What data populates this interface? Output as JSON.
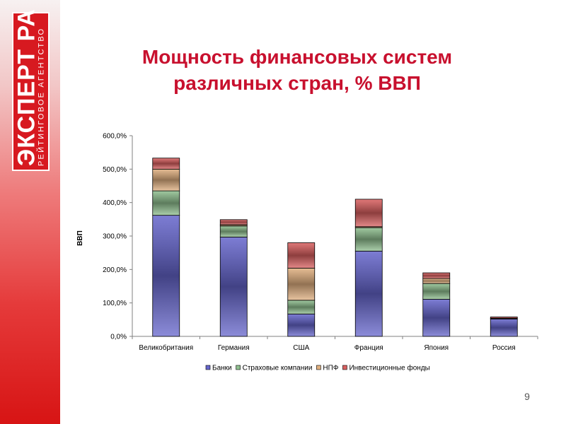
{
  "logo": {
    "main": "ЭКСПЕРТ РА",
    "sub": "РЕЙТИНГОВОЕ АГЕНТСТВО"
  },
  "title": "Мощность финансовых систем различных стран, % ВВП",
  "page_number": "9",
  "colors": {
    "side_band_top": "#f7f1f1",
    "side_band_bottom": "#d71414",
    "title": "#c8102e"
  },
  "chart_data": {
    "type": "bar",
    "stacked": true,
    "title": "",
    "xlabel": "",
    "ylabel": "ВВП",
    "ylim": [
      0,
      600
    ],
    "yticks": [
      "0,0%",
      "100,0%",
      "200,0%",
      "300,0%",
      "400,0%",
      "500,0%",
      "600,0%"
    ],
    "categories": [
      "Великобритания",
      "Германия",
      "США",
      "Франция",
      "Япония",
      "Россия"
    ],
    "series": [
      {
        "name": "Банки",
        "color": "#6666cc",
        "values": [
          362,
          297,
          67,
          255,
          111,
          52
        ]
      },
      {
        "name": "Страховые компании",
        "color": "#8fbf8f",
        "values": [
          73,
          33,
          41,
          70,
          47,
          0
        ]
      },
      {
        "name": "НПФ",
        "color": "#e0b080",
        "values": [
          65,
          4,
          96,
          3,
          15,
          2
        ]
      },
      {
        "name": "Инвестиционные фонды",
        "color": "#d96060",
        "values": [
          33,
          15,
          76,
          82,
          17,
          4
        ]
      }
    ],
    "legend_position": "bottom",
    "grid": false
  }
}
